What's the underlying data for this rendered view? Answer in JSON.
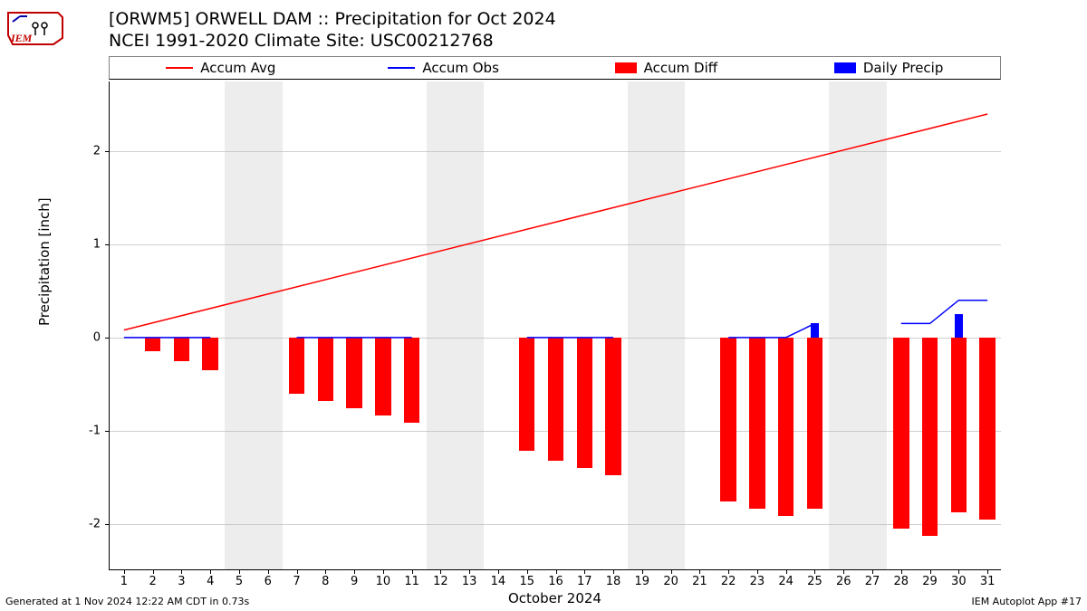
{
  "title_line1": "[ORWM5] ORWELL DAM :: Precipitation for Oct 2024",
  "title_line2": "NCEI 1991-2020 Climate Site: USC00212768",
  "ylabel": "Precipitation [inch]",
  "xlabel": "October 2024",
  "footer_left": "Generated at 1 Nov 2024 12:22 AM CDT in 0.73s",
  "footer_right": "IEM Autoplot App #17",
  "legend": {
    "accum_avg": {
      "label": "Accum Avg",
      "color": "#ff0000",
      "type": "line"
    },
    "accum_obs": {
      "label": "Accum Obs",
      "color": "#0000ff",
      "type": "line"
    },
    "accum_diff": {
      "label": "Accum Diff",
      "color": "#ff0000",
      "type": "patch"
    },
    "daily_precip": {
      "label": "Daily Precip",
      "color": "#0000ff",
      "type": "patch"
    }
  },
  "chart": {
    "type": "combo-bar-line",
    "background_color": "#ffffff",
    "grid_color": "#b0b0b0",
    "shade_color": "#ededed",
    "xlim": [
      1,
      31
    ],
    "ylim": [
      -2.5,
      2.75
    ],
    "yticks": [
      -2,
      -1,
      0,
      1,
      2
    ],
    "xticks_every": 1,
    "days": [
      1,
      2,
      3,
      4,
      5,
      6,
      7,
      8,
      9,
      10,
      11,
      12,
      13,
      14,
      15,
      16,
      17,
      18,
      19,
      20,
      21,
      22,
      23,
      24,
      25,
      26,
      27,
      28,
      29,
      30,
      31
    ],
    "missing_days": [
      5,
      6,
      12,
      13,
      14,
      19,
      20,
      21,
      26,
      27
    ],
    "shade_bands": [
      [
        5,
        6
      ],
      [
        12,
        13
      ],
      [
        19,
        20
      ],
      [
        26,
        27
      ]
    ],
    "accum_avg_line": {
      "color": "#ff0000",
      "width": 1.5,
      "points": [
        [
          1,
          0.08
        ],
        [
          31,
          2.4
        ]
      ]
    },
    "accum_obs_line": {
      "color": "#0000ff",
      "width": 1.5,
      "segments": [
        [
          [
            1,
            0.0
          ],
          [
            4,
            0.0
          ]
        ],
        [
          [
            7,
            0.0
          ],
          [
            11,
            0.0
          ]
        ],
        [
          [
            15,
            0.0
          ],
          [
            18,
            0.0
          ]
        ],
        [
          [
            22,
            0.0
          ],
          [
            24,
            0.0
          ],
          [
            25,
            0.15
          ]
        ],
        [
          [
            28,
            0.15
          ],
          [
            29,
            0.15
          ],
          [
            30,
            0.4
          ],
          [
            31,
            0.4
          ]
        ]
      ]
    },
    "accum_diff_bars": {
      "color": "#ff0000",
      "width": 0.55,
      "values": {
        "2": -0.15,
        "3": -0.25,
        "4": -0.35,
        "7": -0.6,
        "8": -0.68,
        "9": -0.76,
        "10": -0.84,
        "11": -0.92,
        "15": -1.22,
        "16": -1.32,
        "17": -1.4,
        "18": -1.48,
        "22": -1.76,
        "23": -1.84,
        "24": -1.92,
        "25": -1.84,
        "28": -2.05,
        "29": -2.13,
        "30": -1.88,
        "31": -1.96
      }
    },
    "daily_precip_bars": {
      "color": "#0000ff",
      "width": 0.3,
      "values": {
        "25": 0.15,
        "30": 0.25
      }
    }
  }
}
